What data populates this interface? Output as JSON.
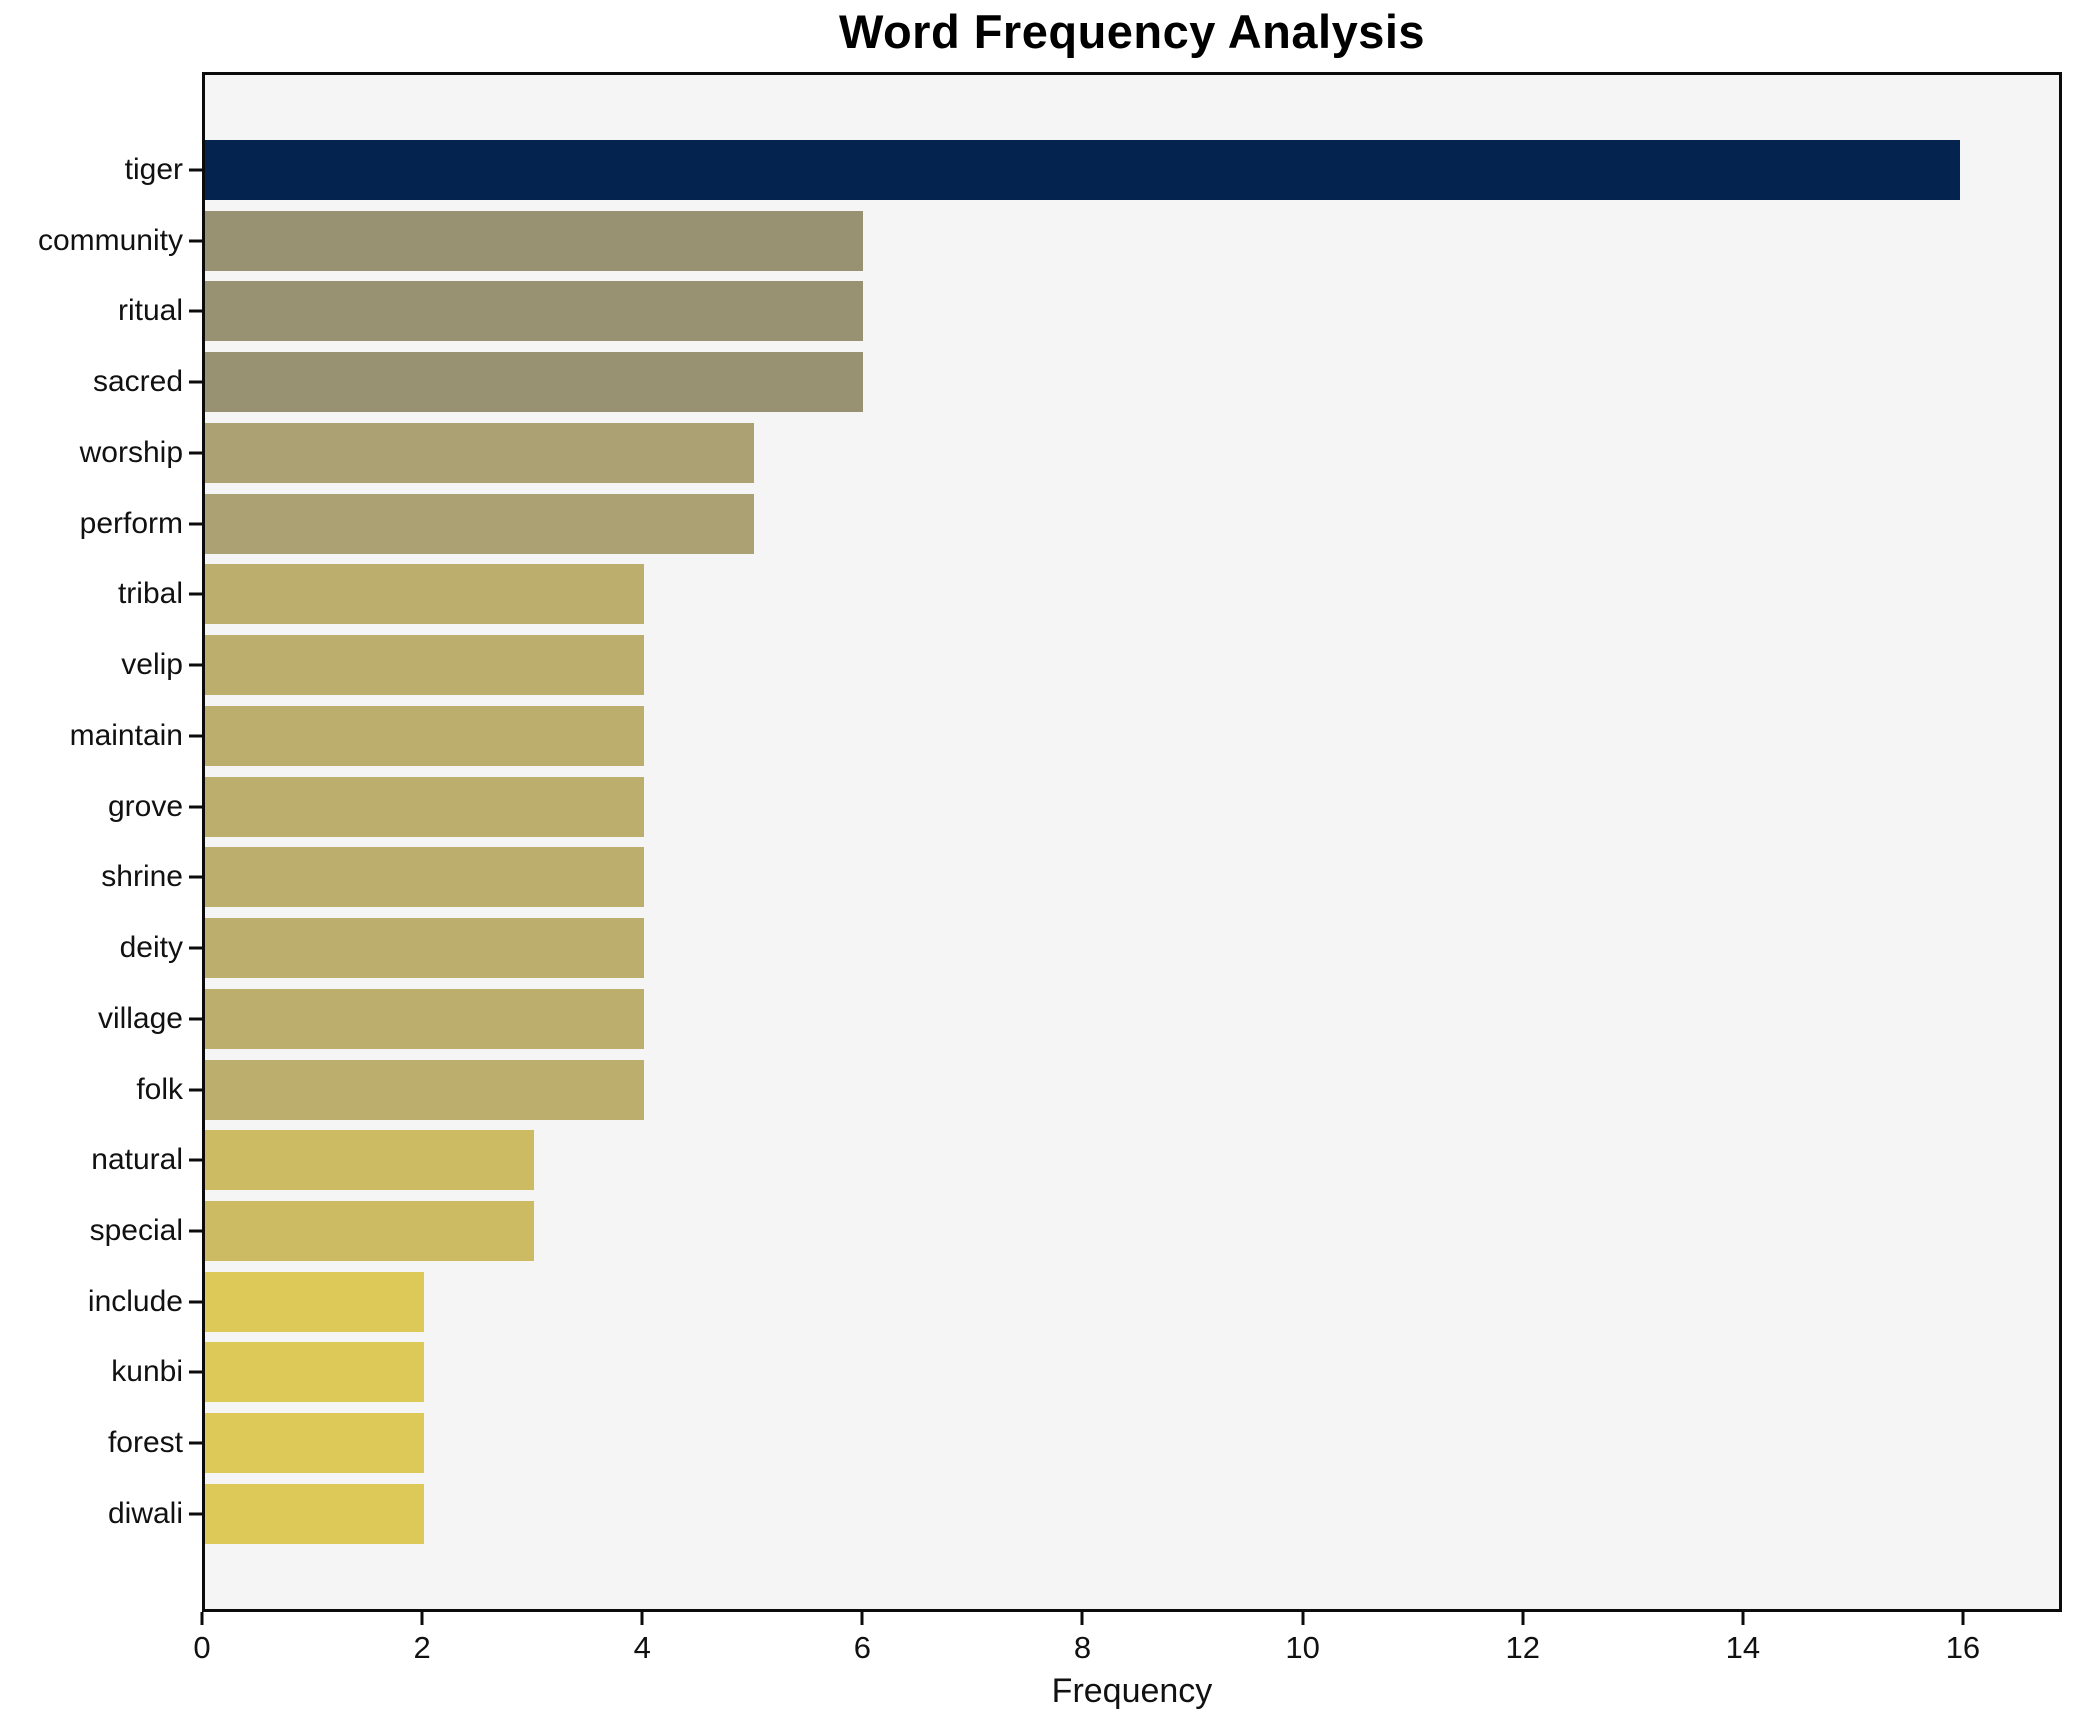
{
  "chart_data": {
    "type": "bar",
    "orientation": "horizontal",
    "title": "Word Frequency Analysis",
    "xlabel": "Frequency",
    "ylabel": "",
    "categories": [
      "tiger",
      "community",
      "ritual",
      "sacred",
      "worship",
      "perform",
      "tribal",
      "velip",
      "maintain",
      "grove",
      "shrine",
      "deity",
      "village",
      "folk",
      "natural",
      "special",
      "include",
      "kunbi",
      "forest",
      "diwali"
    ],
    "values": [
      16,
      6,
      6,
      6,
      5,
      5,
      4,
      4,
      4,
      4,
      4,
      4,
      4,
      4,
      3,
      3,
      2,
      2,
      2,
      2
    ],
    "bar_colors": [
      "#04234e",
      "#999272",
      "#999272",
      "#999272",
      "#aba172",
      "#aba172",
      "#bcae6c",
      "#bcae6c",
      "#bcae6c",
      "#bcae6c",
      "#bcae6c",
      "#bcae6c",
      "#bcae6c",
      "#bcae6c",
      "#ccbb62",
      "#ccbb62",
      "#ddc957",
      "#ddc957",
      "#ddc957",
      "#ddc957"
    ],
    "xlim": [
      0,
      16.9
    ],
    "xticks": [
      0,
      2,
      4,
      6,
      8,
      10,
      12,
      14,
      16
    ],
    "grid": false,
    "legend": null,
    "colors": {
      "plot_bg": "#f5f5f5",
      "fig_bg": "#ffffff",
      "spine": "#0b0b0b",
      "text": "#111111"
    }
  }
}
